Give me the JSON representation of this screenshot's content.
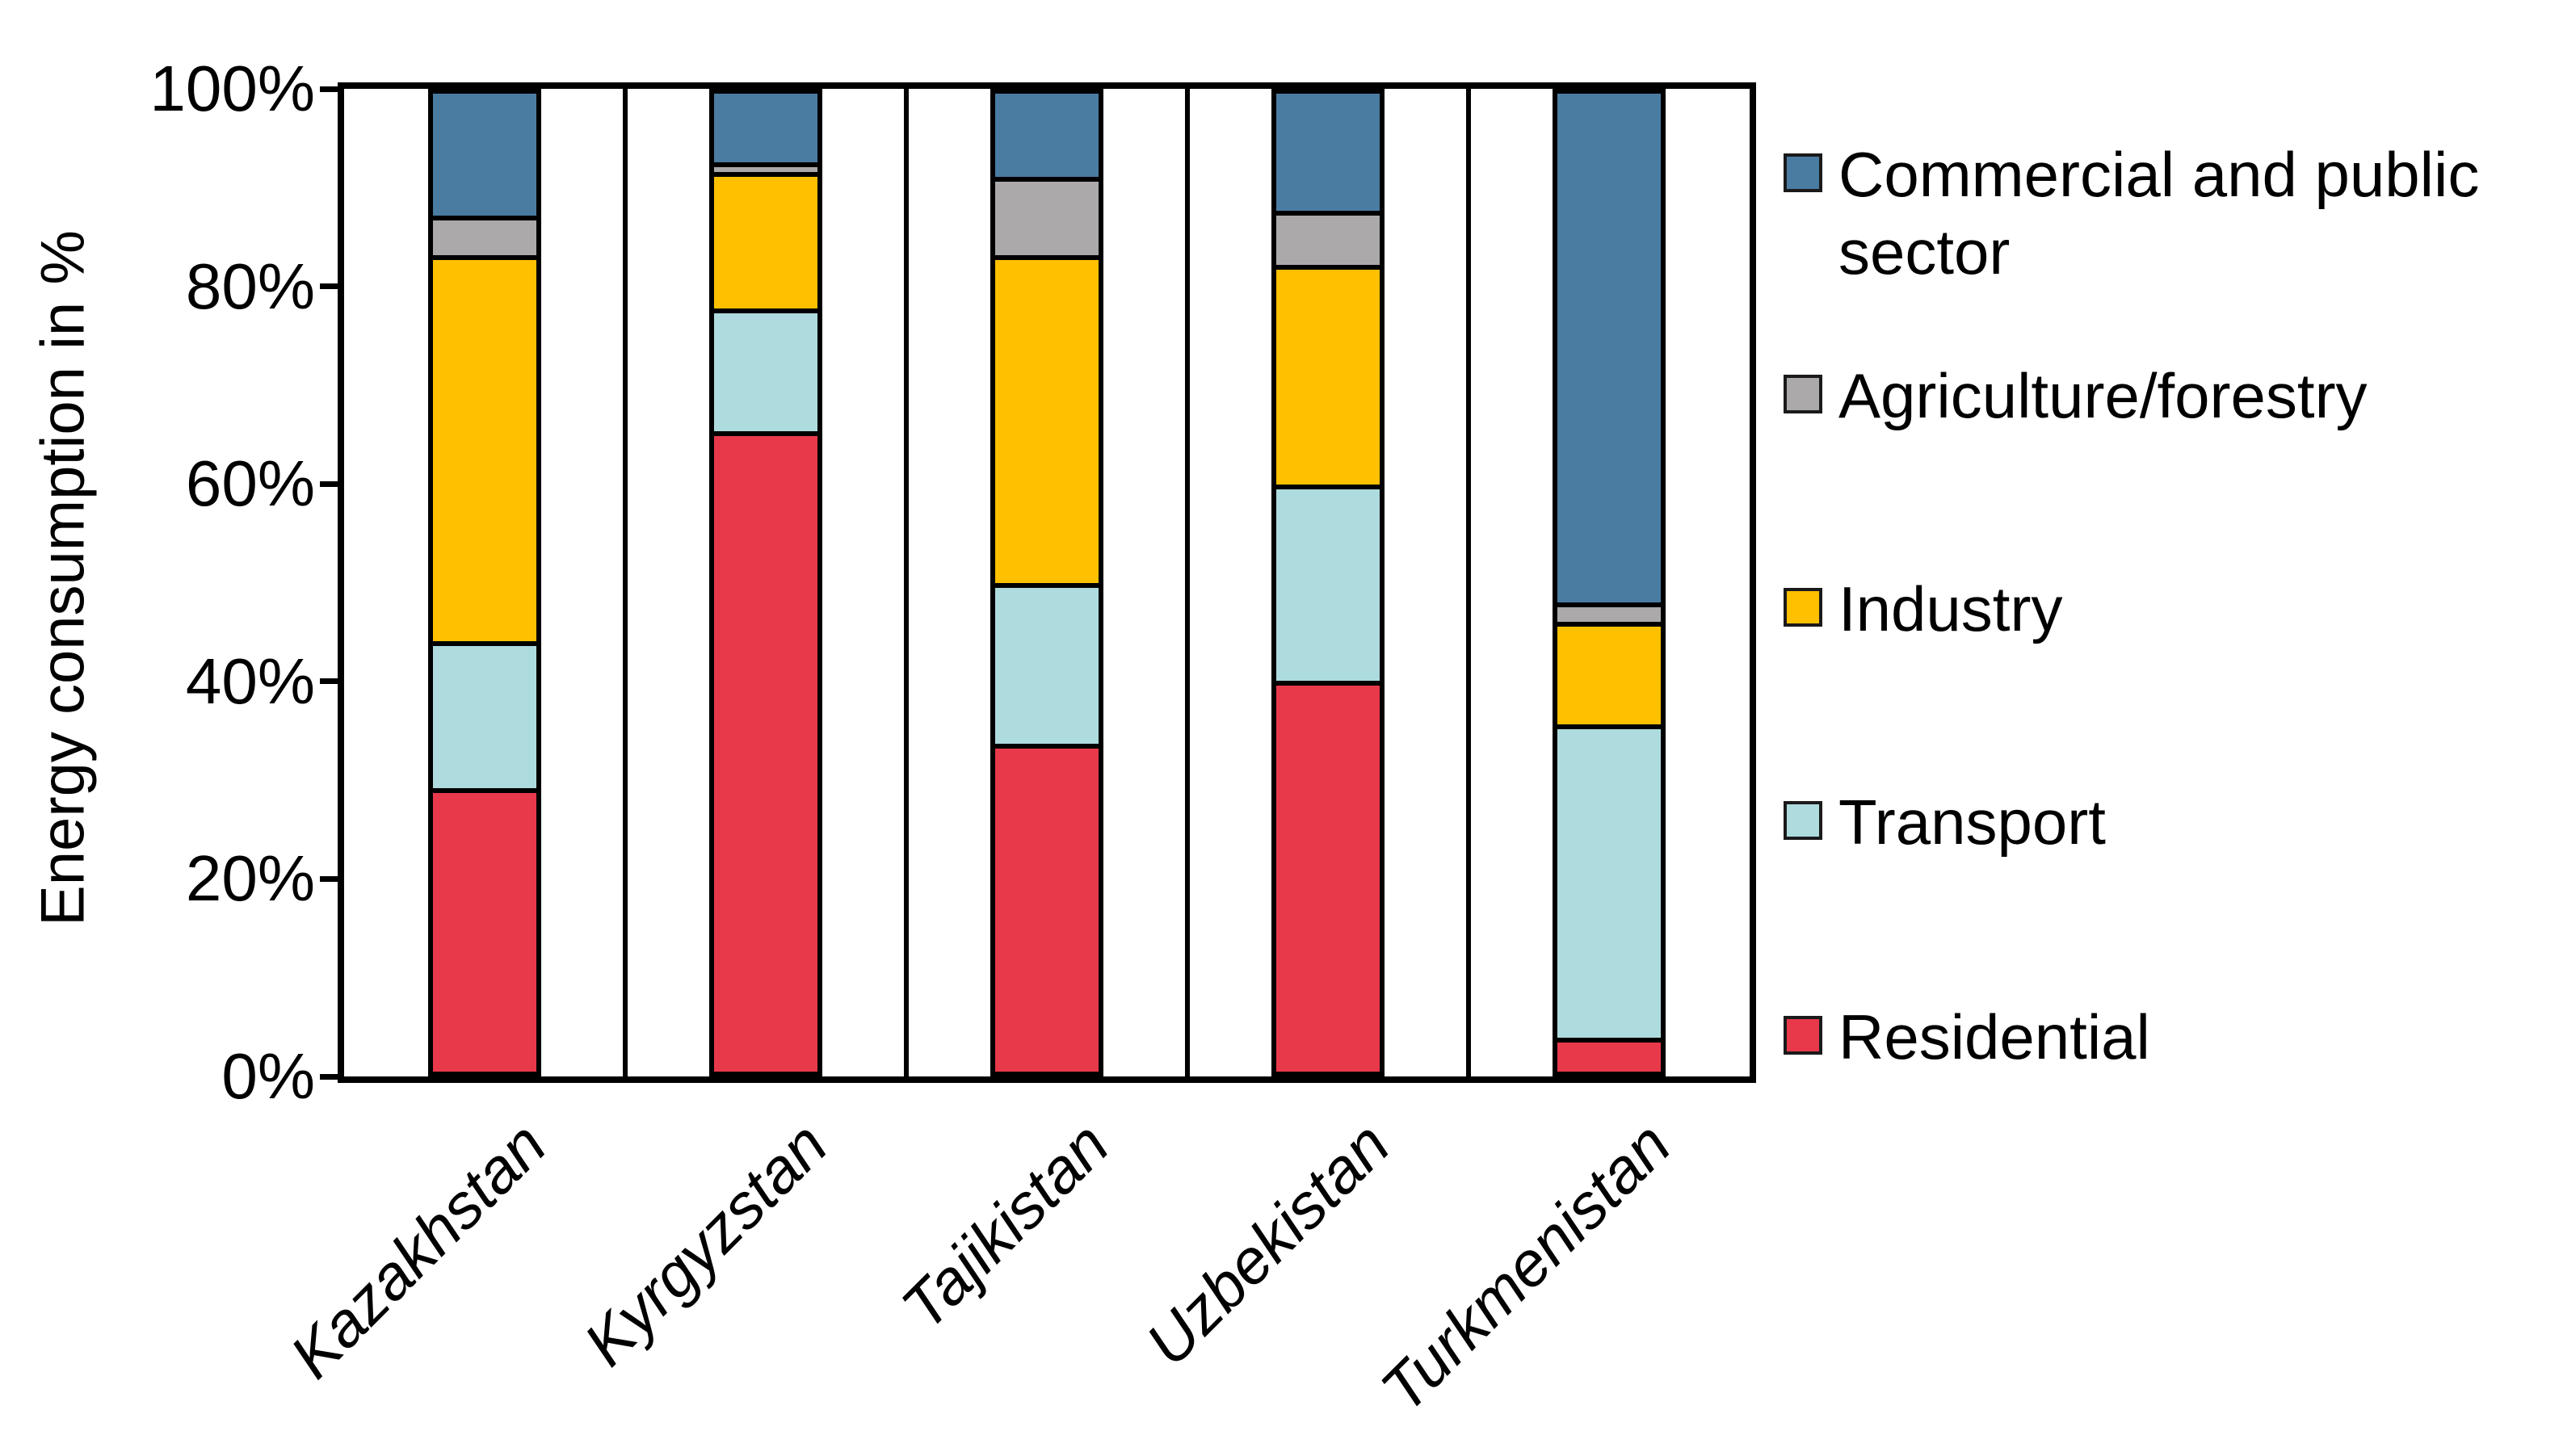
{
  "chart_data": {
    "type": "bar",
    "stacked": true,
    "percent": true,
    "title": "",
    "xlabel": "",
    "ylabel": "Energy consumption in %",
    "ylim": [
      0,
      100
    ],
    "yticks": [
      "0%",
      "20%",
      "40%",
      "60%",
      "80%",
      "100%"
    ],
    "grid": false,
    "legend_position": "right",
    "categories": [
      "Kazakhstan",
      "Kyrgyzstan",
      "Tajikistan",
      "Uzbekistan",
      "Turkmenistan"
    ],
    "series": [
      {
        "name": "Commercial and public sector",
        "color": "#4A7CA2",
        "values": [
          13,
          7.5,
          9,
          12.5,
          52.5
        ]
      },
      {
        "name": "Agriculture/forestry",
        "color": "#ACA9AA",
        "values": [
          4,
          1,
          8,
          5.5,
          2
        ]
      },
      {
        "name": "Industry",
        "color": "#FFC000",
        "values": [
          39.5,
          14,
          33.5,
          22.5,
          10.5
        ]
      },
      {
        "name": "Transport",
        "color": "#AEDBDD",
        "values": [
          15,
          12.5,
          16.5,
          20,
          32
        ]
      },
      {
        "name": "Residential",
        "color": "#E8394A",
        "values": [
          28.5,
          65,
          33,
          39.5,
          3
        ]
      }
    ],
    "axis_color": "#000000",
    "background_color": "#FFFFFF"
  }
}
